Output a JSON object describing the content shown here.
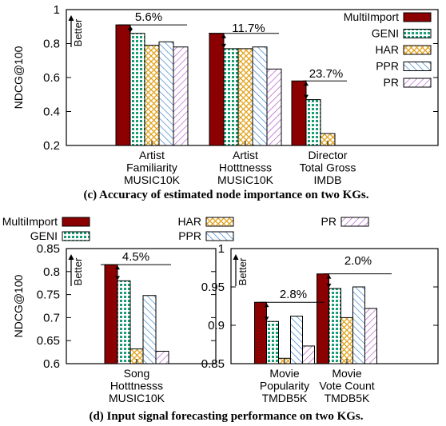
{
  "figure": {
    "caption_c": "(c) Accuracy of estimated node importance on two KGs.",
    "caption_d": "(d) Input signal forecasting performance on two KGs."
  },
  "colors": {
    "MultiImport": "#8b0000",
    "GENI": "#1a9c74",
    "HAR": "#e3a21a",
    "PPR": "#2a78c6",
    "PR": "#b04fc8"
  },
  "chart_data": [
    {
      "id": "c",
      "type": "bar",
      "ylabel": "NDCG@100",
      "ylim": [
        0.2,
        1.0
      ],
      "yticks": [
        0.2,
        0.4,
        0.6,
        0.8,
        1
      ],
      "ytick_labels": [
        "0.2",
        "0.4",
        "0.6",
        "0.8",
        "1"
      ],
      "better_label": "Better",
      "legend_position": "top-right",
      "categories": [
        [
          "Artist",
          "Familiarity",
          "MUSIC10K"
        ],
        [
          "Artist",
          "Hotttnesss",
          "MUSIC10K"
        ],
        [
          "Director",
          "Total Gross",
          "IMDB"
        ]
      ],
      "series": [
        {
          "name": "MultiImport",
          "values": [
            0.91,
            0.86,
            0.58
          ]
        },
        {
          "name": "GENI",
          "values": [
            0.86,
            0.77,
            0.47
          ]
        },
        {
          "name": "HAR",
          "values": [
            0.79,
            0.77,
            0.27
          ]
        },
        {
          "name": "PPR",
          "values": [
            0.81,
            0.78,
            null
          ]
        },
        {
          "name": "PR",
          "values": [
            0.78,
            0.65,
            null
          ]
        }
      ],
      "annotations": [
        "5.6%",
        "11.7%",
        "23.7%"
      ]
    },
    {
      "id": "d1",
      "type": "bar",
      "ylabel": "NDCG@100",
      "ylim": [
        0.6,
        0.85
      ],
      "yticks": [
        0.6,
        0.65,
        0.7,
        0.75,
        0.8,
        0.85
      ],
      "ytick_labels": [
        "0.6",
        "0.65",
        "0.7",
        "0.75",
        "0.8",
        "0.85"
      ],
      "better_label": "Better",
      "categories": [
        [
          "Song",
          "Hotttnesss",
          "MUSIC10K"
        ]
      ],
      "series": [
        {
          "name": "MultiImport",
          "values": [
            0.815
          ]
        },
        {
          "name": "GENI",
          "values": [
            0.78
          ]
        },
        {
          "name": "HAR",
          "values": [
            0.632
          ]
        },
        {
          "name": "PPR",
          "values": [
            0.748
          ]
        },
        {
          "name": "PR",
          "values": [
            0.627
          ]
        }
      ],
      "annotations": [
        "4.5%"
      ]
    },
    {
      "id": "d2",
      "type": "bar",
      "ylabel": "",
      "ylim": [
        0.85,
        1.0
      ],
      "yticks": [
        0.85,
        0.9,
        0.95,
        1
      ],
      "ytick_labels": [
        "0.85",
        "0.9",
        "0.95",
        "1"
      ],
      "better_label": "Better",
      "categories": [
        [
          "Movie",
          "Popularity",
          "TMDB5K"
        ],
        [
          "Movie",
          "Vote Count",
          "TMDB5K"
        ]
      ],
      "series": [
        {
          "name": "MultiImport",
          "values": [
            0.93,
            0.967
          ]
        },
        {
          "name": "GENI",
          "values": [
            0.905,
            0.948
          ]
        },
        {
          "name": "HAR",
          "values": [
            0.857,
            0.91
          ]
        },
        {
          "name": "PPR",
          "values": [
            0.912,
            0.95
          ]
        },
        {
          "name": "PR",
          "values": [
            0.873,
            0.922
          ]
        }
      ],
      "annotations": [
        "2.8%",
        "2.0%"
      ]
    }
  ]
}
